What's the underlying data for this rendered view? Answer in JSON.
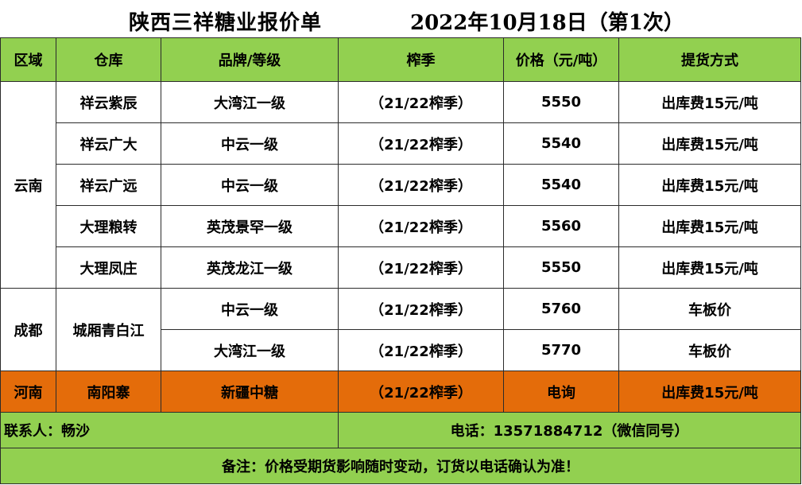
{
  "title": {
    "company": "陕西三祥糖业报价单",
    "date": "2022年10月18日（第1次）"
  },
  "headers": {
    "region": "区域",
    "warehouse": "仓库",
    "brand": "品牌/等级",
    "season": "榨季",
    "price": "价格（元/吨）",
    "delivery": "提货方式"
  },
  "regions": {
    "yunnan": "云南",
    "chengdu": "成都",
    "henan": "河南"
  },
  "rows": [
    {
      "warehouse": "祥云紫辰",
      "brand": "大湾江一级",
      "season": "（21/22榨季）",
      "price": "5550",
      "delivery": "出库费15元/吨"
    },
    {
      "warehouse": "祥云广大",
      "brand": "中云一级",
      "season": "（21/22榨季）",
      "price": "5540",
      "delivery": "出库费15元/吨"
    },
    {
      "warehouse": "祥云广远",
      "brand": "中云一级",
      "season": "（21/22榨季）",
      "price": "5540",
      "delivery": "出库费15元/吨"
    },
    {
      "warehouse": "大理粮转",
      "brand": "英茂景罕一级",
      "season": "（21/22榨季）",
      "price": "5560",
      "delivery": "出库费15元/吨"
    },
    {
      "warehouse": "大理凤庄",
      "brand": "英茂龙江一级",
      "season": "（21/22榨季）",
      "price": "5550",
      "delivery": "出库费15元/吨"
    },
    {
      "warehouse": "城厢青白江",
      "brand": "中云一级",
      "season": "（21/22榨季）",
      "price": "5760",
      "delivery": "车板价"
    },
    {
      "warehouse": "",
      "brand": "大湾江一级",
      "season": "（21/22榨季）",
      "price": "5770",
      "delivery": "车板价"
    },
    {
      "warehouse": "南阳寨",
      "brand": "新疆中糖",
      "season": "（21/22榨季）",
      "price": "电询",
      "delivery": "出库费15元/吨"
    }
  ],
  "contact": {
    "person": "联系人：畅沙",
    "phone": "电话：13571884712（微信同号）"
  },
  "note": "备注：价格受期货影响随时变动，订货以电话确认为准！",
  "colors": {
    "header_green": "#92d050",
    "highlight_orange": "#e46c0a"
  }
}
